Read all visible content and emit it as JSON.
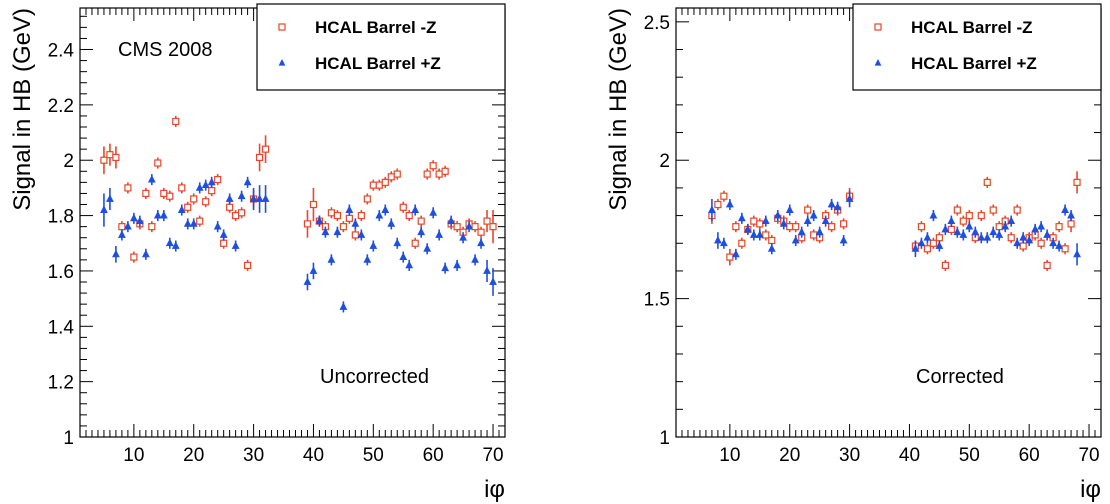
{
  "colors": {
    "minus_z": "#e8472a",
    "plus_z": "#1f4fe0",
    "axis": "#000000"
  },
  "chart_data": [
    {
      "type": "scatter",
      "panel": "left",
      "xlabel": "iφ",
      "ylabel": "Signal in HB (GeV)",
      "xlim": [
        1,
        72
      ],
      "ylim": [
        1,
        2.55
      ],
      "xticks": [
        10,
        20,
        30,
        40,
        50,
        60,
        70
      ],
      "yticks": [
        1,
        1.2,
        1.4,
        1.6,
        1.8,
        2,
        2.2,
        2.4
      ],
      "ytick_labels": [
        "1",
        "1.2",
        "1.4",
        "1.6",
        "1.8",
        "2",
        "2.2",
        "2.4"
      ],
      "annotation_top": "CMS 2008",
      "annotation_bottom": "Uncorrected",
      "legend_position": "top-right",
      "series": [
        {
          "name": "HCAL Barrel -Z",
          "marker": "open-square",
          "x": [
            5,
            6,
            7,
            8,
            9,
            10,
            11,
            12,
            13,
            14,
            15,
            16,
            17,
            18,
            19,
            20,
            21,
            22,
            23,
            24,
            25,
            26,
            27,
            28,
            29,
            30,
            31,
            32,
            39,
            40,
            41,
            42,
            43,
            44,
            45,
            46,
            47,
            48,
            49,
            50,
            51,
            52,
            53,
            54,
            55,
            56,
            57,
            58,
            59,
            60,
            61,
            62,
            63,
            64,
            65,
            66,
            67,
            68,
            69,
            70
          ],
          "y": [
            2.0,
            2.02,
            2.01,
            1.76,
            1.9,
            1.65,
            1.77,
            1.88,
            1.76,
            1.99,
            1.88,
            1.87,
            2.14,
            1.9,
            1.83,
            1.86,
            1.78,
            1.85,
            1.89,
            1.93,
            1.7,
            1.83,
            1.8,
            1.81,
            1.62,
            1.86,
            2.01,
            2.04,
            1.77,
            1.84,
            1.78,
            1.76,
            1.81,
            1.8,
            1.76,
            1.79,
            1.73,
            1.8,
            1.86,
            1.91,
            1.91,
            1.92,
            1.94,
            1.95,
            1.83,
            1.8,
            1.7,
            1.78,
            1.95,
            1.98,
            1.95,
            1.96,
            1.77,
            1.76,
            1.74,
            1.77,
            1.76,
            1.74,
            1.78,
            1.76
          ],
          "err": [
            0.05,
            0.04,
            0.04,
            0.02,
            0.02,
            0.02,
            0.02,
            0.02,
            0.02,
            0.02,
            0.02,
            0.02,
            0.02,
            0.02,
            0.02,
            0.02,
            0.02,
            0.02,
            0.02,
            0.02,
            0.02,
            0.02,
            0.02,
            0.02,
            0.02,
            0.03,
            0.05,
            0.05,
            0.05,
            0.06,
            0.02,
            0.02,
            0.02,
            0.02,
            0.02,
            0.02,
            0.02,
            0.02,
            0.02,
            0.02,
            0.02,
            0.02,
            0.02,
            0.02,
            0.02,
            0.02,
            0.02,
            0.02,
            0.02,
            0.02,
            0.02,
            0.02,
            0.02,
            0.02,
            0.02,
            0.02,
            0.02,
            0.02,
            0.04,
            0.06
          ]
        },
        {
          "name": "HCAL Barrel +Z",
          "marker": "filled-triangle",
          "x": [
            5,
            6,
            7,
            8,
            9,
            10,
            11,
            12,
            13,
            14,
            15,
            16,
            17,
            18,
            19,
            20,
            21,
            22,
            23,
            24,
            25,
            26,
            27,
            28,
            29,
            30,
            31,
            32,
            39,
            40,
            41,
            42,
            43,
            44,
            45,
            46,
            47,
            48,
            49,
            50,
            51,
            52,
            53,
            54,
            55,
            56,
            57,
            58,
            59,
            60,
            61,
            62,
            63,
            64,
            65,
            66,
            67,
            68,
            69,
            70
          ],
          "y": [
            1.82,
            1.86,
            1.66,
            1.73,
            1.76,
            1.79,
            1.78,
            1.66,
            1.93,
            1.8,
            1.8,
            1.7,
            1.69,
            1.82,
            1.77,
            1.77,
            1.9,
            1.91,
            1.92,
            1.76,
            1.73,
            1.86,
            1.69,
            1.87,
            1.92,
            1.86,
            1.86,
            1.86,
            1.56,
            1.6,
            1.78,
            1.74,
            1.64,
            1.74,
            1.47,
            1.82,
            1.77,
            1.73,
            1.64,
            1.69,
            1.8,
            1.82,
            1.77,
            1.7,
            1.65,
            1.62,
            1.82,
            1.74,
            1.68,
            1.81,
            1.73,
            1.61,
            1.78,
            1.62,
            1.72,
            1.76,
            1.64,
            1.7,
            1.6,
            1.56
          ],
          "err": [
            0.06,
            0.04,
            0.03,
            0.02,
            0.02,
            0.02,
            0.02,
            0.02,
            0.02,
            0.02,
            0.02,
            0.02,
            0.02,
            0.02,
            0.02,
            0.02,
            0.02,
            0.02,
            0.02,
            0.02,
            0.02,
            0.02,
            0.02,
            0.02,
            0.02,
            0.04,
            0.05,
            0.05,
            0.03,
            0.03,
            0.02,
            0.02,
            0.02,
            0.02,
            0.02,
            0.02,
            0.02,
            0.02,
            0.02,
            0.02,
            0.02,
            0.02,
            0.02,
            0.02,
            0.02,
            0.02,
            0.02,
            0.02,
            0.02,
            0.02,
            0.02,
            0.02,
            0.02,
            0.02,
            0.02,
            0.02,
            0.02,
            0.02,
            0.04,
            0.05
          ]
        }
      ]
    },
    {
      "type": "scatter",
      "panel": "right",
      "xlabel": "iφ",
      "ylabel": "Signal in HB (GeV)",
      "xlim": [
        1,
        72
      ],
      "ylim": [
        1,
        2.55
      ],
      "xticks": [
        10,
        20,
        30,
        40,
        50,
        60,
        70
      ],
      "yticks": [
        1,
        1.5,
        2,
        2.5
      ],
      "ytick_labels": [
        "1",
        "1.5",
        "2",
        "2.5"
      ],
      "annotation_top": "",
      "annotation_bottom": "Corrected",
      "legend_position": "top-right",
      "series": [
        {
          "name": "HCAL Barrel -Z",
          "marker": "open-square",
          "x": [
            7,
            8,
            9,
            10,
            11,
            12,
            13,
            14,
            15,
            16,
            17,
            18,
            19,
            20,
            21,
            22,
            23,
            24,
            25,
            26,
            27,
            28,
            29,
            30,
            41,
            42,
            43,
            44,
            45,
            46,
            47,
            48,
            49,
            50,
            51,
            52,
            53,
            54,
            55,
            56,
            57,
            58,
            59,
            60,
            61,
            62,
            63,
            64,
            65,
            66,
            67,
            68
          ],
          "y": [
            1.8,
            1.84,
            1.87,
            1.65,
            1.76,
            1.7,
            1.75,
            1.78,
            1.77,
            1.73,
            1.71,
            1.79,
            1.78,
            1.76,
            1.76,
            1.72,
            1.82,
            1.73,
            1.72,
            1.8,
            1.76,
            1.82,
            1.77,
            1.87,
            1.69,
            1.76,
            1.68,
            1.7,
            1.72,
            1.62,
            1.75,
            1.82,
            1.78,
            1.8,
            1.72,
            1.8,
            1.92,
            1.82,
            1.76,
            1.78,
            1.72,
            1.82,
            1.69,
            1.72,
            1.73,
            1.7,
            1.62,
            1.72,
            1.76,
            1.68,
            1.77,
            1.92
          ],
          "err": [
            0.03,
            0.02,
            0.02,
            0.03,
            0.02,
            0.02,
            0.02,
            0.02,
            0.02,
            0.02,
            0.02,
            0.02,
            0.02,
            0.02,
            0.02,
            0.02,
            0.02,
            0.02,
            0.02,
            0.02,
            0.02,
            0.02,
            0.02,
            0.03,
            0.02,
            0.02,
            0.02,
            0.02,
            0.02,
            0.02,
            0.02,
            0.02,
            0.02,
            0.02,
            0.02,
            0.02,
            0.02,
            0.02,
            0.02,
            0.02,
            0.02,
            0.02,
            0.02,
            0.02,
            0.02,
            0.02,
            0.02,
            0.02,
            0.02,
            0.02,
            0.03,
            0.04
          ]
        },
        {
          "name": "HCAL Barrel +Z",
          "marker": "filled-triangle",
          "x": [
            7,
            8,
            9,
            10,
            11,
            12,
            13,
            14,
            15,
            16,
            17,
            18,
            19,
            20,
            21,
            22,
            23,
            24,
            25,
            26,
            27,
            28,
            29,
            30,
            41,
            42,
            43,
            44,
            45,
            46,
            47,
            48,
            49,
            50,
            51,
            52,
            53,
            54,
            55,
            56,
            57,
            58,
            59,
            60,
            61,
            62,
            63,
            64,
            65,
            66,
            67,
            68
          ],
          "y": [
            1.82,
            1.71,
            1.7,
            1.84,
            1.66,
            1.79,
            1.75,
            1.73,
            1.73,
            1.78,
            1.68,
            1.8,
            1.77,
            1.82,
            1.71,
            1.74,
            1.78,
            1.8,
            1.74,
            1.78,
            1.84,
            1.83,
            1.71,
            1.86,
            1.68,
            1.7,
            1.72,
            1.8,
            1.69,
            1.75,
            1.78,
            1.74,
            1.73,
            1.76,
            1.74,
            1.72,
            1.72,
            1.74,
            1.73,
            1.76,
            1.78,
            1.7,
            1.72,
            1.71,
            1.75,
            1.76,
            1.73,
            1.7,
            1.69,
            1.82,
            1.8,
            1.66
          ],
          "err": [
            0.04,
            0.03,
            0.02,
            0.02,
            0.02,
            0.02,
            0.02,
            0.02,
            0.02,
            0.02,
            0.02,
            0.02,
            0.02,
            0.02,
            0.02,
            0.02,
            0.02,
            0.02,
            0.02,
            0.02,
            0.02,
            0.02,
            0.02,
            0.03,
            0.03,
            0.02,
            0.02,
            0.02,
            0.02,
            0.02,
            0.02,
            0.02,
            0.02,
            0.02,
            0.02,
            0.02,
            0.02,
            0.02,
            0.02,
            0.02,
            0.02,
            0.02,
            0.02,
            0.02,
            0.02,
            0.02,
            0.02,
            0.02,
            0.02,
            0.02,
            0.02,
            0.04
          ]
        }
      ]
    }
  ]
}
